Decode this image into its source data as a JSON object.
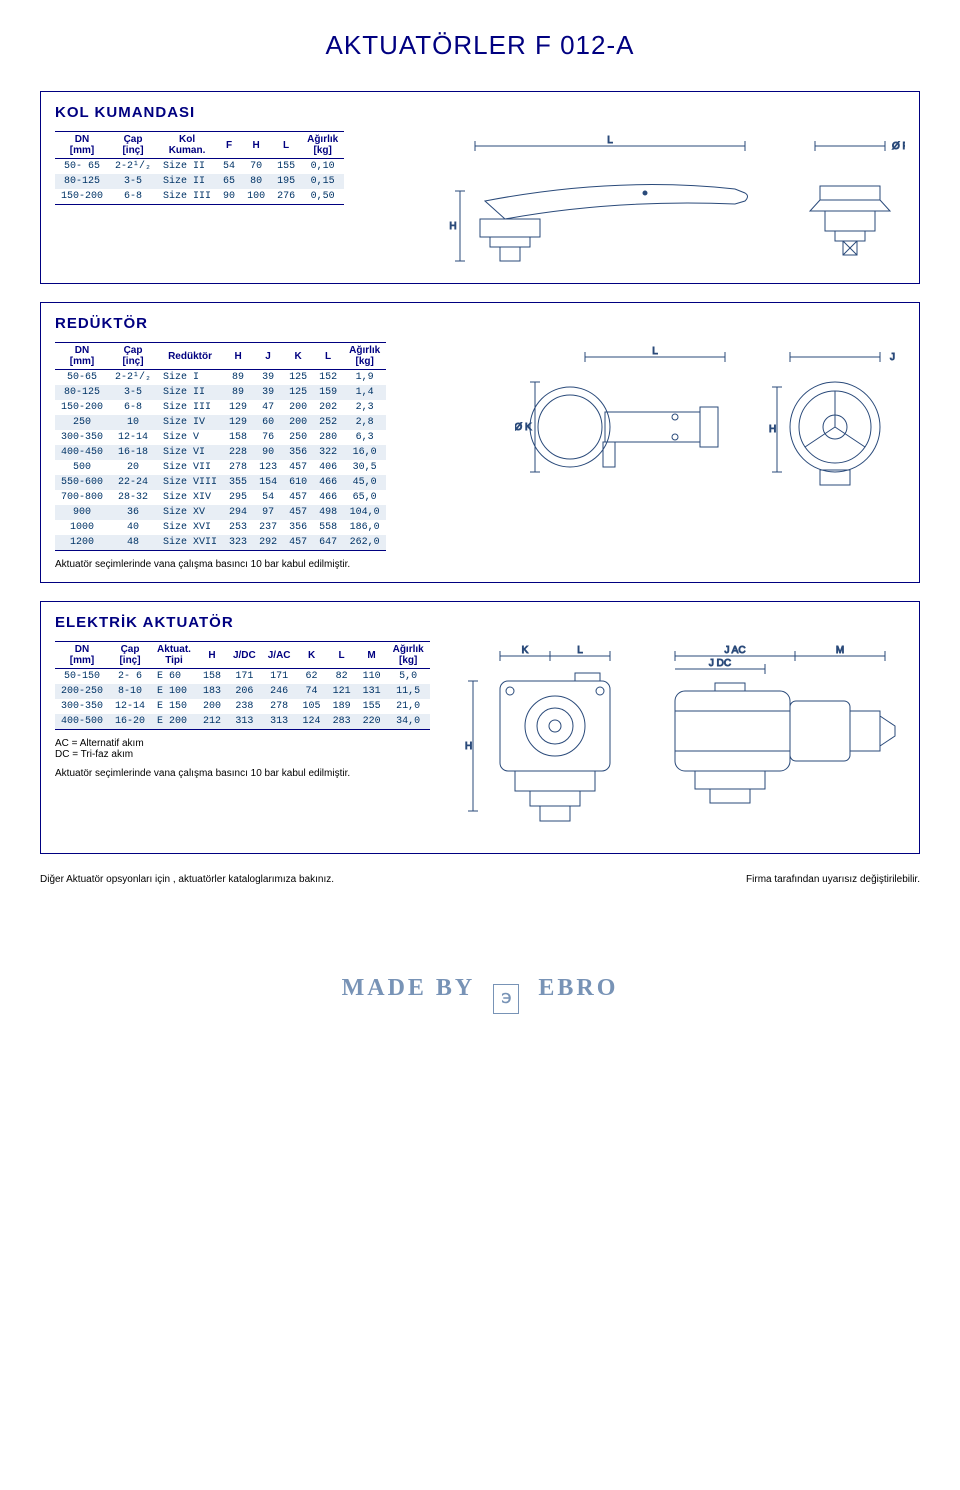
{
  "page_title": "AKTUATÖRLER F 012-A",
  "logo": {
    "left": "MADE BY",
    "right": "EBRO",
    "icon": "℈"
  },
  "footnote_left": "Diğer Aktuatör opsyonları için , aktuatörler kataloglarımıza bakınız.",
  "footnote_right": "Firma tarafından uyarısız değiştirilebilir.",
  "kol": {
    "title": "KOL KUMANDASI",
    "headers": [
      "DN\n[mm]",
      "Çap\n[inç]",
      "Kol\nKuman.",
      "F",
      "H",
      "L",
      "Ağırlık\n[kg]"
    ],
    "rows": [
      [
        "50- 65",
        "2-2¹/₂",
        "Size II",
        "54",
        "70",
        "155",
        "0,10"
      ],
      [
        "80-125",
        "3-5",
        "Size II",
        "65",
        "80",
        "195",
        "0,15"
      ],
      [
        "150-200",
        "6-8",
        "Size III",
        "90",
        "100",
        "276",
        "0,50"
      ]
    ],
    "dim_labels": {
      "L": "L",
      "F": "Ø F",
      "H": "H"
    }
  },
  "reduktor": {
    "title": "REDÜKTÖR",
    "headers": [
      "DN\n[mm]",
      "Çap\n[inç]",
      "Redüktör",
      "H",
      "J",
      "K",
      "L",
      "Ağırlık\n[kg]"
    ],
    "rows": [
      [
        "50-65",
        "2-2¹/₂",
        "Size I",
        "89",
        "39",
        "125",
        "152",
        "1,9"
      ],
      [
        "80-125",
        "3-5",
        "Size II",
        "89",
        "39",
        "125",
        "159",
        "1,4"
      ],
      [
        "150-200",
        "6-8",
        "Size III",
        "129",
        "47",
        "200",
        "202",
        "2,3"
      ],
      [
        "250",
        "10",
        "Size IV",
        "129",
        "60",
        "200",
        "252",
        "2,8"
      ],
      [
        "300-350",
        "12-14",
        "Size V",
        "158",
        "76",
        "250",
        "280",
        "6,3"
      ],
      [
        "400-450",
        "16-18",
        "Size VI",
        "228",
        "90",
        "356",
        "322",
        "16,0"
      ],
      [
        "500",
        "20",
        "Size VII",
        "278",
        "123",
        "457",
        "406",
        "30,5"
      ],
      [
        "550-600",
        "22-24",
        "Size VIII",
        "355",
        "154",
        "610",
        "466",
        "45,0"
      ],
      [
        "700-800",
        "28-32",
        "Size XIV",
        "295",
        "54",
        "457",
        "466",
        "65,0"
      ],
      [
        "900",
        "36",
        "Size XV",
        "294",
        "97",
        "457",
        "498",
        "104,0"
      ],
      [
        "1000",
        "40",
        "Size XVI",
        "253",
        "237",
        "356",
        "558",
        "186,0"
      ],
      [
        "1200",
        "48",
        "Size XVII",
        "323",
        "292",
        "457",
        "647",
        "262,0"
      ]
    ],
    "note": "Aktuatör seçimlerinde vana çalışma basıncı 10 bar kabul edilmiştir.",
    "dim_labels": {
      "L": "L",
      "J": "J",
      "K": "Ø K",
      "H": "H"
    }
  },
  "elektrik": {
    "title": "ELEKTRİK AKTUATÖR",
    "headers": [
      "DN\n[mm]",
      "Çap\n[inç]",
      "Aktuat.\nTipi",
      "H",
      "J/DC",
      "J/AC",
      "K",
      "L",
      "M",
      "Ağırlık\n[kg]"
    ],
    "rows": [
      [
        "50-150",
        "2- 6",
        "E 60",
        "158",
        "171",
        "171",
        "62",
        "82",
        "110",
        "5,0"
      ],
      [
        "200-250",
        "8-10",
        "E 100",
        "183",
        "206",
        "246",
        "74",
        "121",
        "131",
        "11,5"
      ],
      [
        "300-350",
        "12-14",
        "E 150",
        "200",
        "238",
        "278",
        "105",
        "189",
        "155",
        "21,0"
      ],
      [
        "400-500",
        "16-20",
        "E 200",
        "212",
        "313",
        "313",
        "124",
        "283",
        "220",
        "34,0"
      ]
    ],
    "note_ac": "AC = Alternatif akım",
    "note_dc": "DC = Tri-faz akım",
    "note": "Aktuatör seçimlerinde vana çalışma basıncı 10 bar kabul edilmiştir.",
    "dim_labels": {
      "K": "K",
      "L": "L",
      "JAC": "J AC",
      "JDC": "J DC",
      "M": "M",
      "H": "H"
    }
  },
  "colors": {
    "stroke": "#2a4a7a",
    "text": "#000080",
    "row_even": "#e8eef5",
    "page_bg": "#ffffff"
  }
}
